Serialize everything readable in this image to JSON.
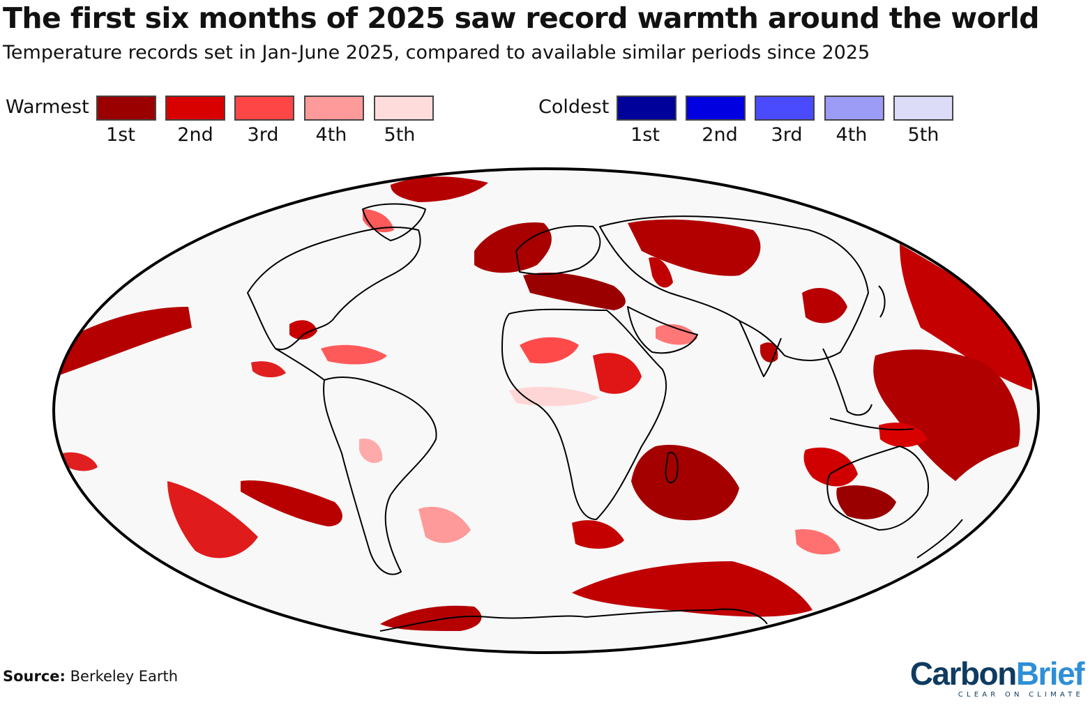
{
  "header": {
    "title": "The first six months of 2025 saw record warmth around the world",
    "subtitle": "Temperature records set in Jan-June 2025, compared to available similar periods since 2025"
  },
  "legend": {
    "warmest": {
      "label": "Warmest",
      "items": [
        {
          "rank": "1st",
          "color": "#9b0000"
        },
        {
          "rank": "2nd",
          "color": "#d90000"
        },
        {
          "rank": "3rd",
          "color": "#ff4646"
        },
        {
          "rank": "4th",
          "color": "#ff9a9a"
        },
        {
          "rank": "5th",
          "color": "#ffdcdc"
        }
      ]
    },
    "coldest": {
      "label": "Coldest",
      "items": [
        {
          "rank": "1st",
          "color": "#00009b"
        },
        {
          "rank": "2nd",
          "color": "#0000e0"
        },
        {
          "rank": "3rd",
          "color": "#4a4aff"
        },
        {
          "rank": "4th",
          "color": "#9c9cf6"
        },
        {
          "rank": "5th",
          "color": "#dcdcf8"
        }
      ]
    }
  },
  "map": {
    "projection": "Mollweide",
    "background": "#f8f8f8",
    "outline_color": "#000000"
  },
  "source": {
    "label": "Source:",
    "text": "Berkeley Earth"
  },
  "logo": {
    "part1": "Carbon",
    "part2": "Brief",
    "tagline": "CLEAR ON CLIMATE"
  }
}
